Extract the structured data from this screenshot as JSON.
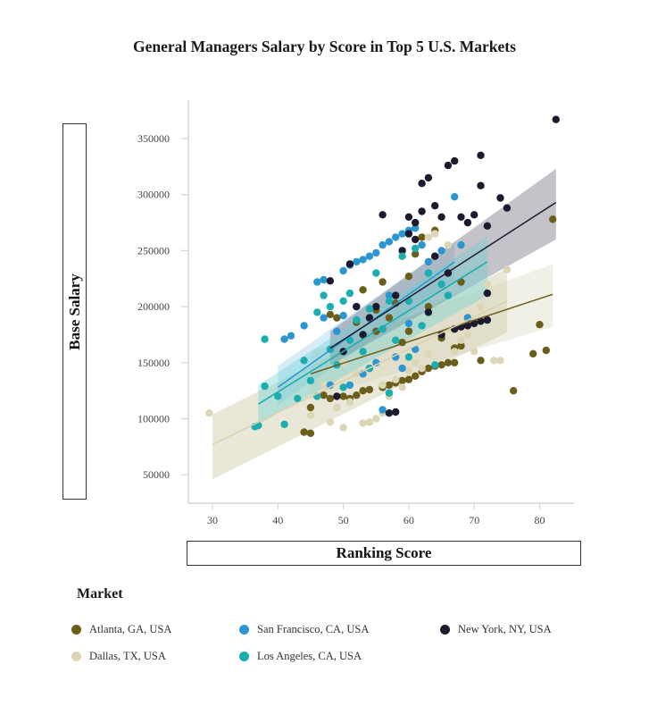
{
  "chart_data": {
    "type": "scatter",
    "title": "General Managers Salary by Score in Top 5 U.S. Markets",
    "xlabel": "Ranking Score",
    "ylabel": "Base Salary",
    "xlim": [
      26.5,
      85.5
    ],
    "ylim": [
      26000,
      385000
    ],
    "xticks": [
      30,
      40,
      50,
      60,
      70,
      80
    ],
    "yticks": [
      50000,
      100000,
      150000,
      200000,
      250000,
      300000,
      350000
    ],
    "grid": false,
    "legend_title": "Market",
    "legend_position": "bottom",
    "regression": true,
    "series": [
      {
        "name": "Atlanta, GA, USA",
        "color": "#6b5e1a",
        "trend": {
          "x": [
            45,
            82
          ],
          "y": [
            140000,
            211000
          ],
          "band_low": [
            118000,
            182000
          ],
          "band_high": [
            160000,
            238000
          ]
        },
        "points": [
          [
            44,
            88000
          ],
          [
            45,
            87000
          ],
          [
            45,
            110000
          ],
          [
            47,
            121000
          ],
          [
            48,
            118000
          ],
          [
            48,
            193000
          ],
          [
            49,
            190000
          ],
          [
            50,
            120000
          ],
          [
            51,
            118000
          ],
          [
            52,
            121000
          ],
          [
            52,
            186000
          ],
          [
            53,
            125000
          ],
          [
            53,
            215000
          ],
          [
            54,
            126000
          ],
          [
            55,
            178000
          ],
          [
            55,
            197000
          ],
          [
            56,
            128000
          ],
          [
            56,
            222000
          ],
          [
            57,
            130000
          ],
          [
            57,
            190000
          ],
          [
            58,
            132000
          ],
          [
            58,
            203000
          ],
          [
            59,
            134000
          ],
          [
            59,
            168000
          ],
          [
            60,
            135000
          ],
          [
            60,
            178000
          ],
          [
            60,
            227000
          ],
          [
            61,
            138000
          ],
          [
            61,
            247000
          ],
          [
            62,
            142000
          ],
          [
            62,
            262000
          ],
          [
            63,
            145000
          ],
          [
            63,
            200000
          ],
          [
            64,
            147000
          ],
          [
            64,
            268000
          ],
          [
            65,
            148000
          ],
          [
            65,
            172000
          ],
          [
            66,
            150000
          ],
          [
            67,
            150000
          ],
          [
            67,
            163000
          ],
          [
            68,
            165000
          ],
          [
            68,
            222000
          ],
          [
            69,
            190000
          ],
          [
            71,
            152000
          ],
          [
            76,
            125000
          ],
          [
            79,
            158000
          ],
          [
            80,
            184000
          ],
          [
            81,
            161000
          ],
          [
            82,
            278000
          ]
        ]
      },
      {
        "name": "Dallas, TX, USA",
        "color": "#dcd6b6",
        "trend": {
          "x": [
            30,
            75
          ],
          "y": [
            77000,
            205000
          ],
          "band_low": [
            46000,
            177000
          ],
          "band_high": [
            104000,
            234000
          ]
        },
        "points": [
          [
            29.5,
            105000
          ],
          [
            45,
            103000
          ],
          [
            46,
            120000
          ],
          [
            47,
            130000
          ],
          [
            48,
            97000
          ],
          [
            49,
            110000
          ],
          [
            50,
            92000
          ],
          [
            50,
            150000
          ],
          [
            51,
            115000
          ],
          [
            52,
            140000
          ],
          [
            53,
            96000
          ],
          [
            54,
            97000
          ],
          [
            55,
            100000
          ],
          [
            56,
            105000
          ],
          [
            56,
            130000
          ],
          [
            57,
            120000
          ],
          [
            58,
            135000
          ],
          [
            59,
            128000
          ],
          [
            60,
            143000
          ],
          [
            61,
            150000
          ],
          [
            62,
            145000
          ],
          [
            62,
            255000
          ],
          [
            63,
            158000
          ],
          [
            63,
            262000
          ],
          [
            64,
            265000
          ],
          [
            65,
            175000
          ],
          [
            66,
            180000
          ],
          [
            66,
            255000
          ],
          [
            67,
            160000
          ],
          [
            68,
            170000
          ],
          [
            69,
            175000
          ],
          [
            70,
            160000
          ],
          [
            71,
            200000
          ],
          [
            72,
            220000
          ],
          [
            73,
            152000
          ],
          [
            74,
            152000
          ],
          [
            75,
            233000
          ]
        ]
      },
      {
        "name": "San Francisco, CA, USA",
        "color": "#2b96d2",
        "trend": {
          "x": [
            40,
            67
          ],
          "y": [
            128000,
            240000
          ],
          "band_low": [
            112000,
            222000
          ],
          "band_high": [
            147000,
            258000
          ]
        },
        "points": [
          [
            41,
            171000
          ],
          [
            42,
            174000
          ],
          [
            44,
            183000
          ],
          [
            46,
            222000
          ],
          [
            47,
            224000
          ],
          [
            47,
            190000
          ],
          [
            48,
            130000
          ],
          [
            49,
            178000
          ],
          [
            50,
            232000
          ],
          [
            50,
            192000
          ],
          [
            51,
            237000
          ],
          [
            51,
            130000
          ],
          [
            52,
            240000
          ],
          [
            52,
            200000
          ],
          [
            53,
            242000
          ],
          [
            53,
            140000
          ],
          [
            54,
            245000
          ],
          [
            54,
            145000
          ],
          [
            55,
            248000
          ],
          [
            55,
            150000
          ],
          [
            56,
            255000
          ],
          [
            56,
            108000
          ],
          [
            57,
            258000
          ],
          [
            57,
            210000
          ],
          [
            58,
            262000
          ],
          [
            58,
            155000
          ],
          [
            59,
            265000
          ],
          [
            59,
            145000
          ],
          [
            60,
            268000
          ],
          [
            60,
            185000
          ],
          [
            61,
            270000
          ],
          [
            61,
            162000
          ],
          [
            62,
            255000
          ],
          [
            63,
            240000
          ],
          [
            64,
            245000
          ],
          [
            65,
            250000
          ],
          [
            66,
            210000
          ],
          [
            67,
            298000
          ],
          [
            68,
            255000
          ],
          [
            69,
            190000
          ]
        ]
      },
      {
        "name": "New York, NY, USA",
        "color": "#1c1a2e",
        "trend": {
          "x": [
            48,
            82.5
          ],
          "y": [
            163000,
            293000
          ],
          "band_low": [
            148000,
            260000
          ],
          "band_high": [
            178000,
            323000
          ]
        },
        "points": [
          [
            48,
            223000
          ],
          [
            49,
            120000
          ],
          [
            50,
            160000
          ],
          [
            51,
            238000
          ],
          [
            52,
            200000
          ],
          [
            53,
            175000
          ],
          [
            54,
            190000
          ],
          [
            55,
            200000
          ],
          [
            56,
            282000
          ],
          [
            57,
            105000
          ],
          [
            58,
            106000
          ],
          [
            58,
            210000
          ],
          [
            59,
            250000
          ],
          [
            60,
            265000
          ],
          [
            60,
            280000
          ],
          [
            61,
            275000
          ],
          [
            61,
            260000
          ],
          [
            62,
            285000
          ],
          [
            62,
            310000
          ],
          [
            63,
            315000
          ],
          [
            63,
            195000
          ],
          [
            64,
            290000
          ],
          [
            64,
            245000
          ],
          [
            65,
            280000
          ],
          [
            65,
            175000
          ],
          [
            66,
            326000
          ],
          [
            66,
            230000
          ],
          [
            67,
            330000
          ],
          [
            67,
            180000
          ],
          [
            68,
            280000
          ],
          [
            68,
            182000
          ],
          [
            69,
            275000
          ],
          [
            69,
            183000
          ],
          [
            70,
            282000
          ],
          [
            70,
            185000
          ],
          [
            71,
            335000
          ],
          [
            71,
            308000
          ],
          [
            71,
            187000
          ],
          [
            72,
            272000
          ],
          [
            72,
            212000
          ],
          [
            72,
            188000
          ],
          [
            74,
            297000
          ],
          [
            75,
            288000
          ],
          [
            82.5,
            367000
          ]
        ]
      },
      {
        "name": "Los Angeles, CA, USA",
        "color": "#1aaeb0",
        "trend": {
          "x": [
            37,
            72
          ],
          "y": [
            113000,
            240000
          ],
          "band_low": [
            95000,
            210000
          ],
          "band_high": [
            130000,
            262000
          ]
        },
        "points": [
          [
            36.5,
            93000
          ],
          [
            37,
            94000
          ],
          [
            38,
            171000
          ],
          [
            38,
            129000
          ],
          [
            40,
            120000
          ],
          [
            41,
            95000
          ],
          [
            43,
            118000
          ],
          [
            44,
            152000
          ],
          [
            45,
            134000
          ],
          [
            46,
            120000
          ],
          [
            46,
            195000
          ],
          [
            47,
            210000
          ],
          [
            48,
            162000
          ],
          [
            48,
            200000
          ],
          [
            49,
            148000
          ],
          [
            50,
            205000
          ],
          [
            50,
            128000
          ],
          [
            51,
            170000
          ],
          [
            51,
            212000
          ],
          [
            52,
            188000
          ],
          [
            53,
            160000
          ],
          [
            54,
            198000
          ],
          [
            54,
            145000
          ],
          [
            55,
            230000
          ],
          [
            56,
            180000
          ],
          [
            57,
            205000
          ],
          [
            57,
            123000
          ],
          [
            58,
            170000
          ],
          [
            59,
            245000
          ],
          [
            60,
            205000
          ],
          [
            60,
            155000
          ],
          [
            61,
            252000
          ],
          [
            62,
            183000
          ],
          [
            63,
            230000
          ],
          [
            64,
            148000
          ],
          [
            65,
            220000
          ],
          [
            66,
            210000
          ]
        ]
      }
    ]
  },
  "title": "General Managers Salary by Score in Top 5 U.S. Markets",
  "axes": {
    "ylabel": "Base Salary",
    "xlabel": "Ranking Score",
    "yticks": [
      "350000",
      "300000",
      "250000",
      "200000",
      "150000",
      "100000",
      "50000"
    ],
    "xticks": [
      "30",
      "40",
      "50",
      "60",
      "70",
      "80"
    ]
  },
  "legend": {
    "title": "Market",
    "items": [
      {
        "label": "Atlanta, GA, USA",
        "color": "#6b5e1a"
      },
      {
        "label": "San Francisco, CA, USA",
        "color": "#2b96d2"
      },
      {
        "label": "New York, NY, USA",
        "color": "#1c1a2e"
      },
      {
        "label": "Dallas, TX, USA",
        "color": "#dcd6b6"
      },
      {
        "label": "Los Angeles, CA, USA",
        "color": "#1aaeb0"
      }
    ]
  }
}
